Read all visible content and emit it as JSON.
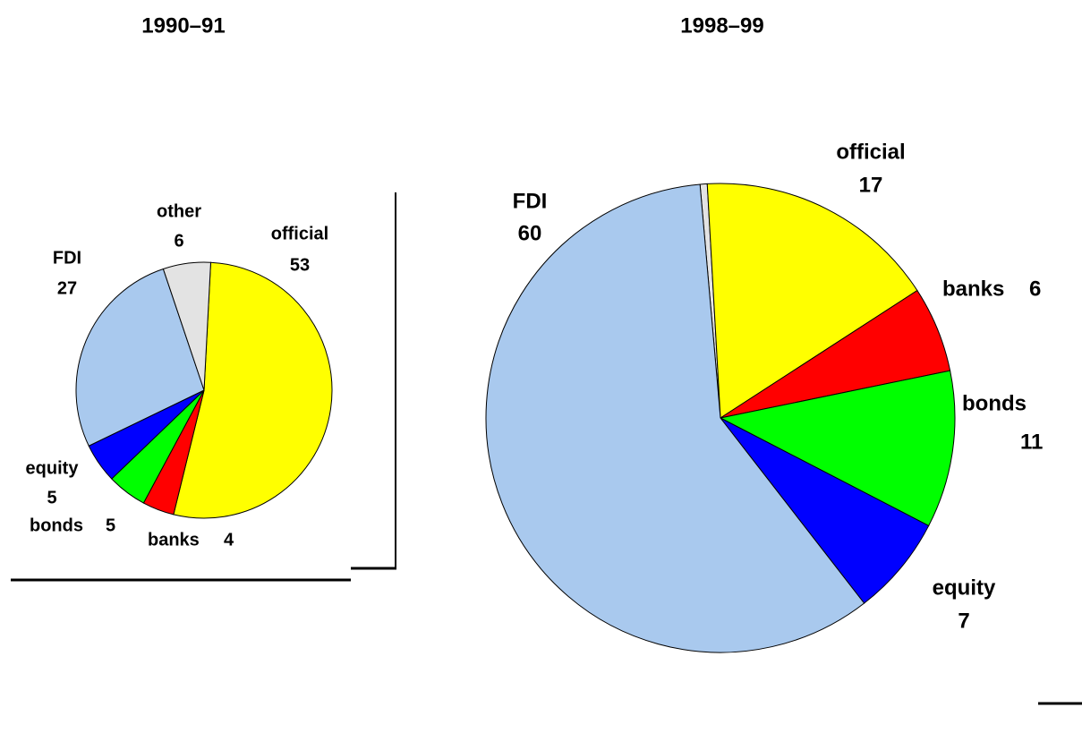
{
  "chart_data": [
    {
      "type": "pie",
      "title": "1990–91",
      "categories": [
        "official",
        "banks",
        "bonds",
        "equity",
        "FDI",
        "other"
      ],
      "values": [
        53,
        4,
        5,
        5,
        27,
        6
      ],
      "colors": [
        "#ffff00",
        "#ff0000",
        "#00ff00",
        "#0000ff",
        "#a9c9ee",
        "#e3e3e3"
      ]
    },
    {
      "type": "pie",
      "title": "1998–99",
      "categories": [
        null,
        "official",
        "banks",
        "bonds",
        "equity",
        "FDI"
      ],
      "values": [
        0.5,
        17,
        6,
        11,
        7,
        60
      ],
      "colors": [
        "#e3e3e3",
        "#ffff00",
        "#ff0000",
        "#00ff00",
        "#0000ff",
        "#a9c9ee"
      ]
    }
  ]
}
